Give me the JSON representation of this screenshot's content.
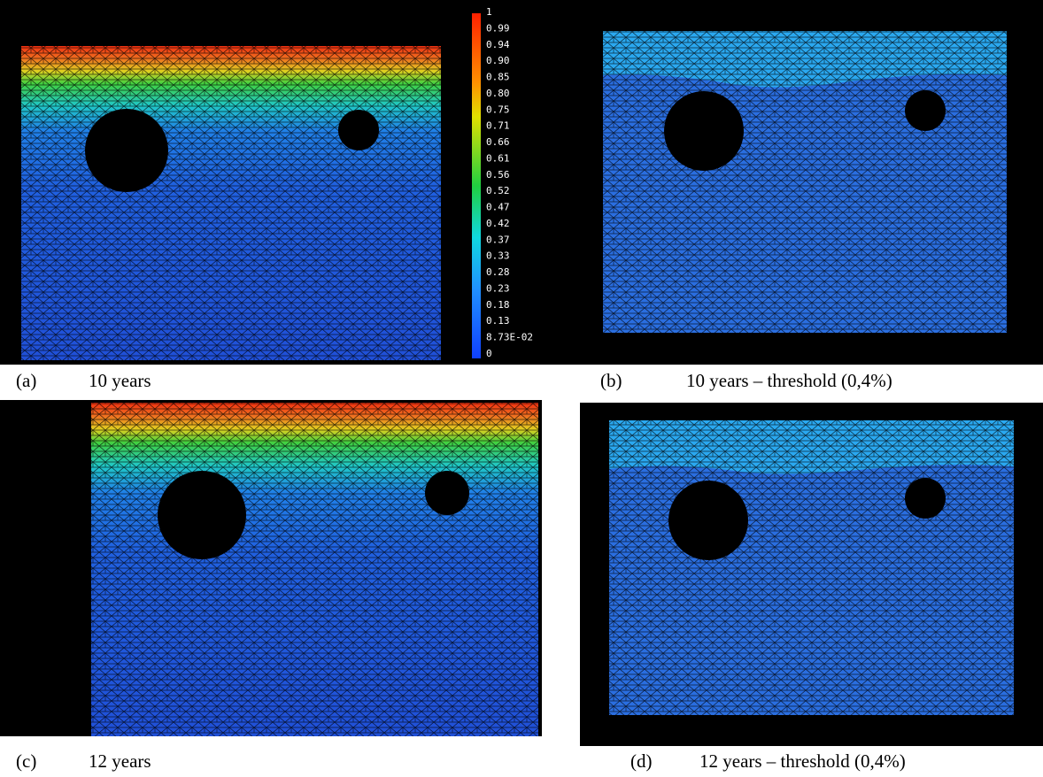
{
  "panels": [
    {
      "letter": "(a)",
      "caption": "10 years"
    },
    {
      "letter": "(b)",
      "caption": "10 years – threshold (0,4%)"
    },
    {
      "letter": "(c)",
      "caption": "12 years"
    },
    {
      "letter": "(d)",
      "caption": "12 years – threshold (0,4%)"
    }
  ],
  "colorbar": {
    "labels": [
      "1",
      "0.99",
      "0.94",
      "0.90",
      "0.85",
      "0.80",
      "0.75",
      "0.71",
      "0.66",
      "0.61",
      "0.56",
      "0.52",
      "0.47",
      "0.42",
      "0.37",
      "0.33",
      "0.28",
      "0.23",
      "0.18",
      "0.13",
      "8.73E-02",
      "0"
    ]
  }
}
